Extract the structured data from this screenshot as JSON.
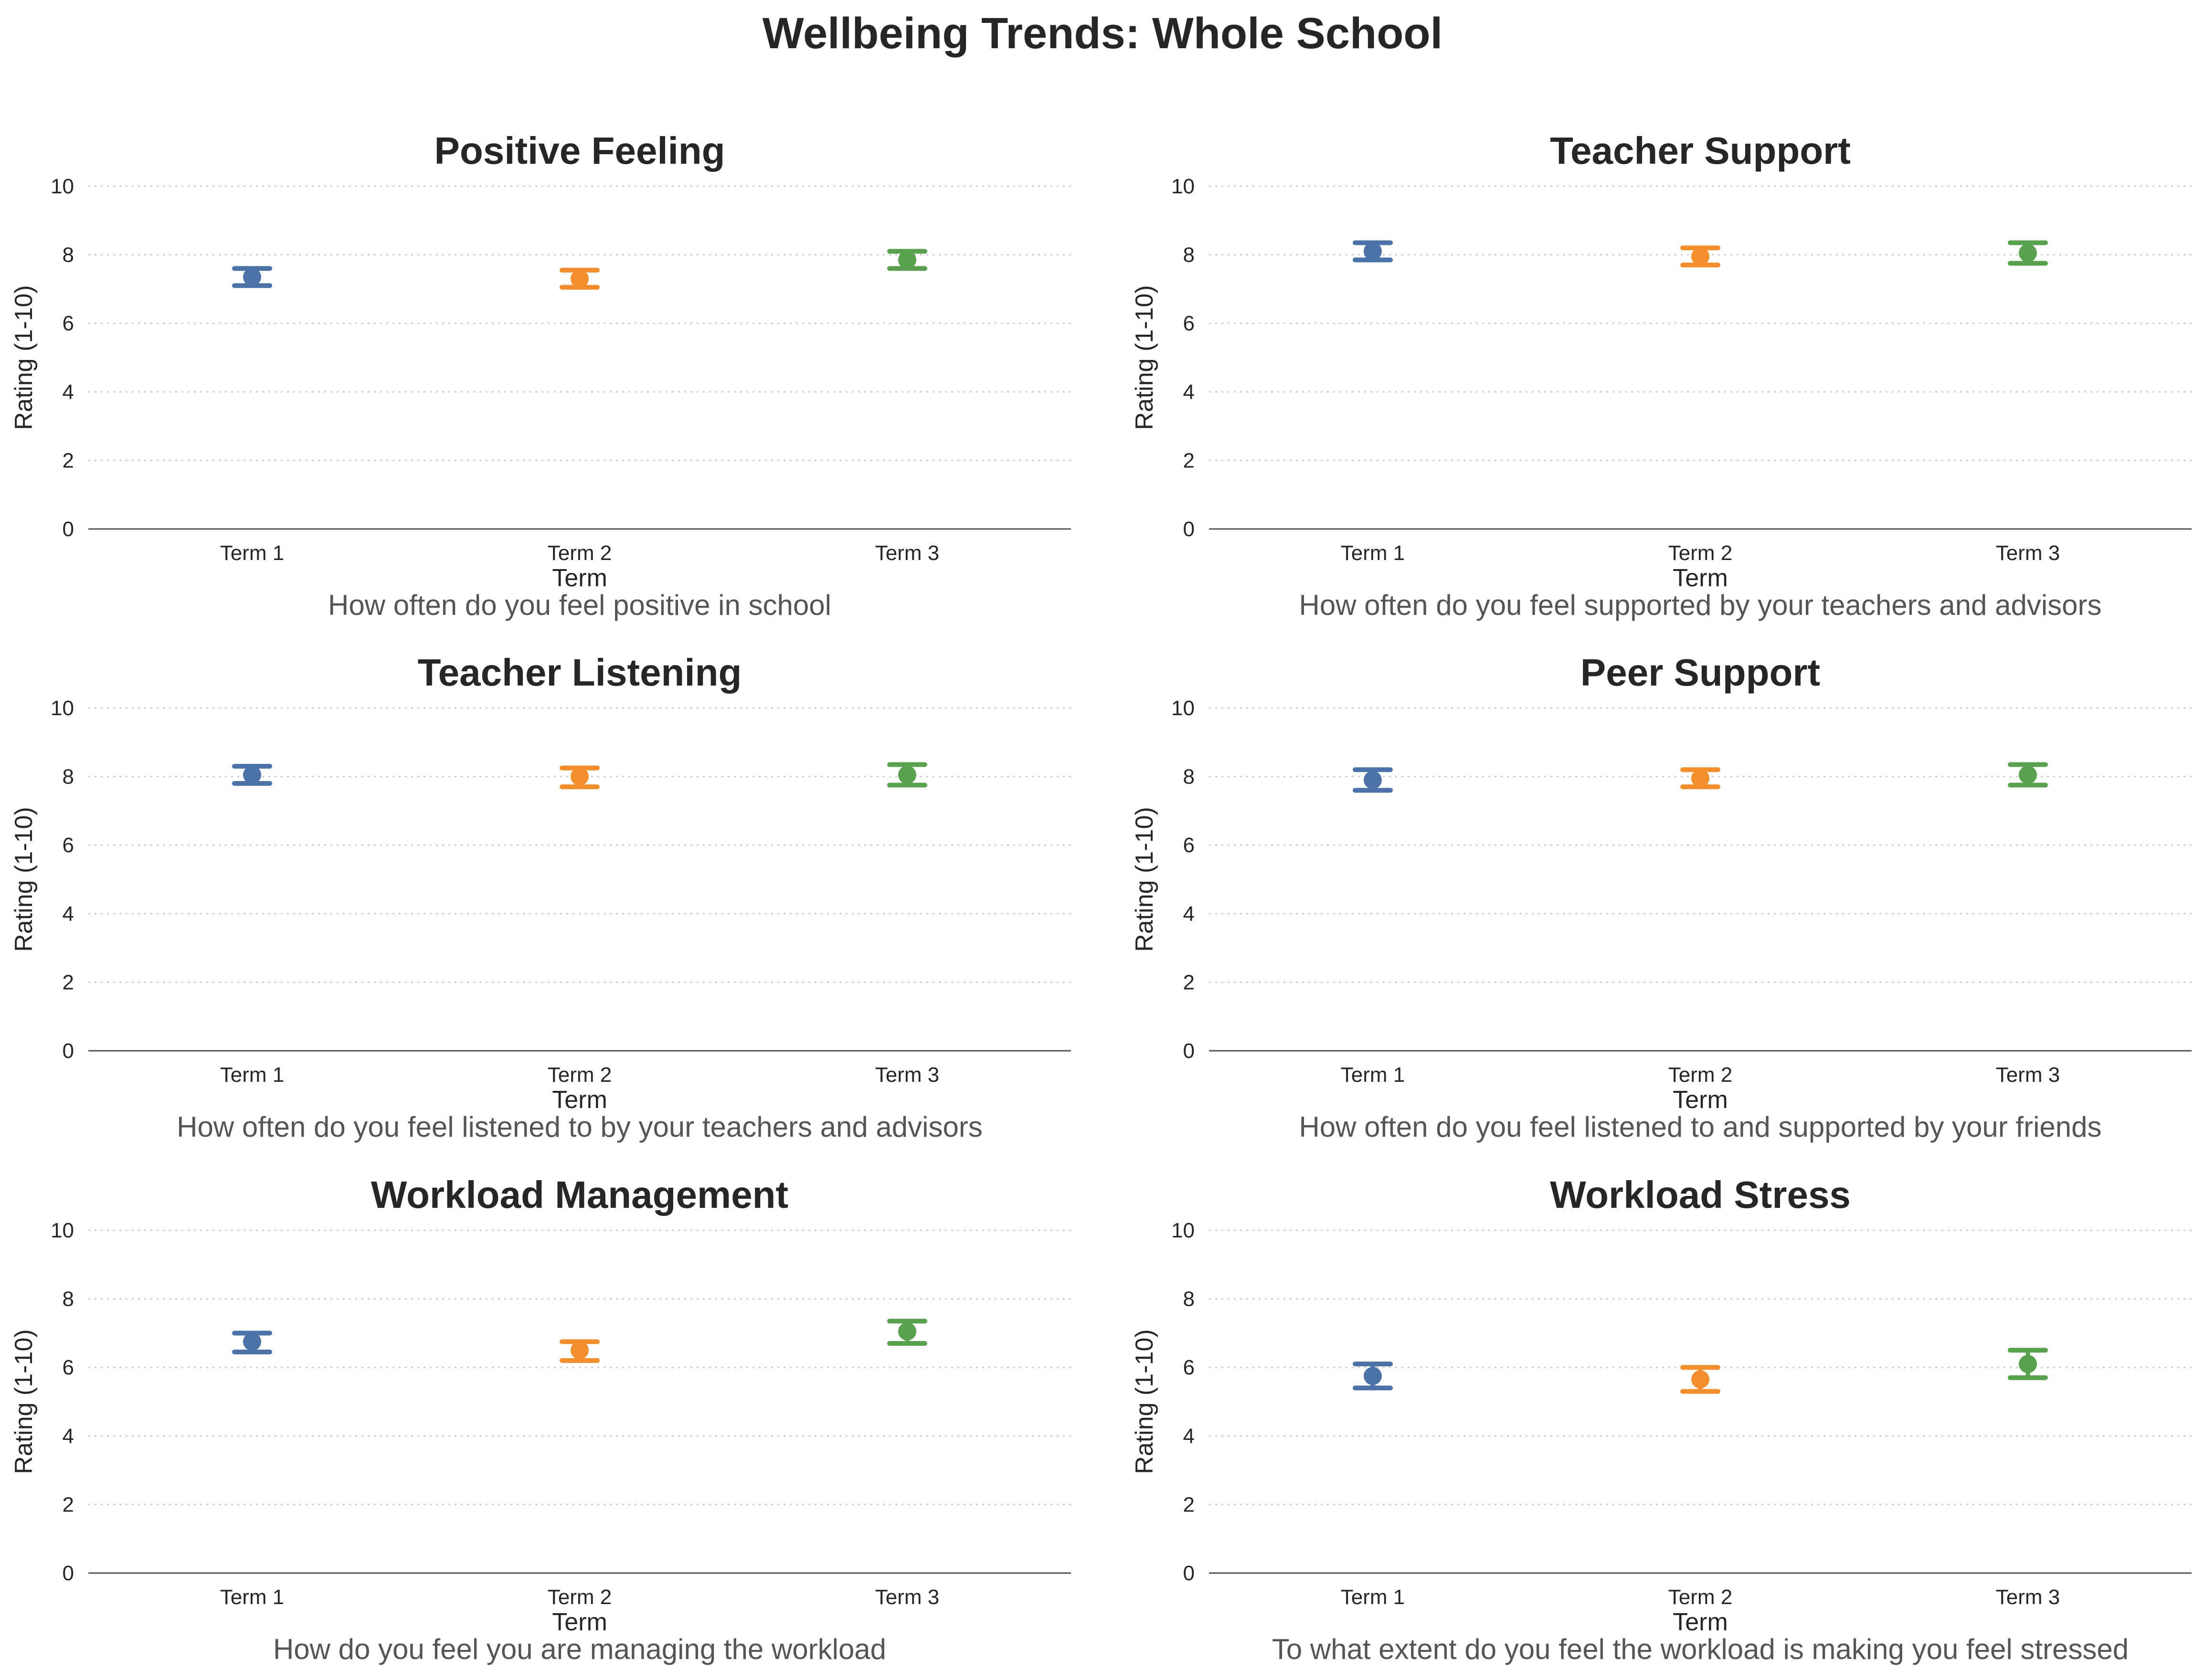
{
  "title": "Wellbeing Trends: Whole School",
  "colors": {
    "Term 1": "#4c72a8",
    "Term 2": "#f28e2b",
    "Term 3": "#59a14f",
    "grid": "#cccccc",
    "axis": "#555555"
  },
  "chart_data": [
    {
      "type": "scatter",
      "title": "Positive Feeling",
      "question": "How often do you feel positive in school",
      "xlabel": "Term",
      "ylabel": "Rating (1-10)",
      "categories": [
        "Term 1",
        "Term 2",
        "Term 3"
      ],
      "values": [
        7.35,
        7.3,
        7.85
      ],
      "error_low": [
        7.1,
        7.05,
        7.6
      ],
      "error_high": [
        7.6,
        7.55,
        8.1
      ],
      "ylim": [
        0,
        10
      ],
      "yticks": [
        0,
        2,
        4,
        6,
        8,
        10
      ],
      "grid": true
    },
    {
      "type": "scatter",
      "title": "Teacher Support",
      "question": "How often do you feel supported by your teachers and advisors",
      "xlabel": "Term",
      "ylabel": "Rating (1-10)",
      "categories": [
        "Term 1",
        "Term 2",
        "Term 3"
      ],
      "values": [
        8.1,
        7.95,
        8.05
      ],
      "error_low": [
        7.85,
        7.7,
        7.75
      ],
      "error_high": [
        8.35,
        8.2,
        8.35
      ],
      "ylim": [
        0,
        10
      ],
      "yticks": [
        0,
        2,
        4,
        6,
        8,
        10
      ],
      "grid": true
    },
    {
      "type": "scatter",
      "title": "Teacher Listening",
      "question": "How often do you feel listened to by your teachers and advisors",
      "xlabel": "Term",
      "ylabel": "Rating (1-10)",
      "categories": [
        "Term 1",
        "Term 2",
        "Term 3"
      ],
      "values": [
        8.05,
        8.0,
        8.05
      ],
      "error_low": [
        7.8,
        7.7,
        7.75
      ],
      "error_high": [
        8.3,
        8.25,
        8.35
      ],
      "ylim": [
        0,
        10
      ],
      "yticks": [
        0,
        2,
        4,
        6,
        8,
        10
      ],
      "grid": true
    },
    {
      "type": "scatter",
      "title": "Peer Support",
      "question": "How often do you feel listened to and supported by your friends",
      "xlabel": "Term",
      "ylabel": "Rating (1-10)",
      "categories": [
        "Term 1",
        "Term 2",
        "Term 3"
      ],
      "values": [
        7.9,
        7.95,
        8.05
      ],
      "error_low": [
        7.6,
        7.7,
        7.75
      ],
      "error_high": [
        8.2,
        8.2,
        8.35
      ],
      "ylim": [
        0,
        10
      ],
      "yticks": [
        0,
        2,
        4,
        6,
        8,
        10
      ],
      "grid": true
    },
    {
      "type": "scatter",
      "title": "Workload Management",
      "question": "How do you feel you are managing the workload",
      "xlabel": "Term",
      "ylabel": "Rating (1-10)",
      "categories": [
        "Term 1",
        "Term 2",
        "Term 3"
      ],
      "values": [
        6.75,
        6.5,
        7.05
      ],
      "error_low": [
        6.45,
        6.2,
        6.7
      ],
      "error_high": [
        7.0,
        6.75,
        7.35
      ],
      "ylim": [
        0,
        10
      ],
      "yticks": [
        0,
        2,
        4,
        6,
        8,
        10
      ],
      "grid": true
    },
    {
      "type": "scatter",
      "title": "Workload Stress",
      "question": "To what extent do you feel the workload is making you feel stressed",
      "xlabel": "Term",
      "ylabel": "Rating (1-10)",
      "categories": [
        "Term 1",
        "Term 2",
        "Term 3"
      ],
      "values": [
        5.75,
        5.65,
        6.1
      ],
      "error_low": [
        5.4,
        5.3,
        5.7
      ],
      "error_high": [
        6.1,
        6.0,
        6.5
      ],
      "ylim": [
        0,
        10
      ],
      "yticks": [
        0,
        2,
        4,
        6,
        8,
        10
      ],
      "grid": true
    }
  ]
}
